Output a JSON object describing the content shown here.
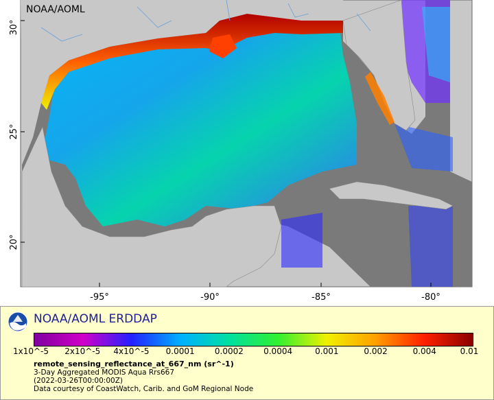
{
  "map": {
    "credit": "NOAA/AOML",
    "lat_ticks": [
      "30°",
      "25°",
      "20°"
    ],
    "lon_ticks": [
      "-95°",
      "-90°",
      "-85°",
      "-80°"
    ],
    "colors": {
      "land": "#c8c8c8",
      "no_data": "#7a7a7a",
      "background": "#ffffff"
    }
  },
  "legend": {
    "logo": "noaa-logo",
    "title": "NOAA/AOML ERDDAP",
    "colorbar_stops": [
      "#7f00a0",
      "#d000c8",
      "#2222ff",
      "#00b0ff",
      "#00e0a0",
      "#30f030",
      "#f0f000",
      "#ffa000",
      "#ff2000",
      "#8b0000"
    ],
    "tick_labels": [
      "1x10^-5",
      "2x10^-5",
      "4x10^-5",
      "0.0001",
      "0.0002",
      "0.0004",
      "0.001",
      "0.002",
      "0.004",
      "0.01"
    ],
    "variable": "remote_sensing_reflectance_at_667_nm (sr^-1)",
    "line1": "3-Day Aggregated MODIS Aqua Rrs667",
    "line2": "(2022-03-26T00:00:00Z)",
    "line3": "Data courtesy of CoastWatch, Carib. and GoM Regional Node"
  }
}
